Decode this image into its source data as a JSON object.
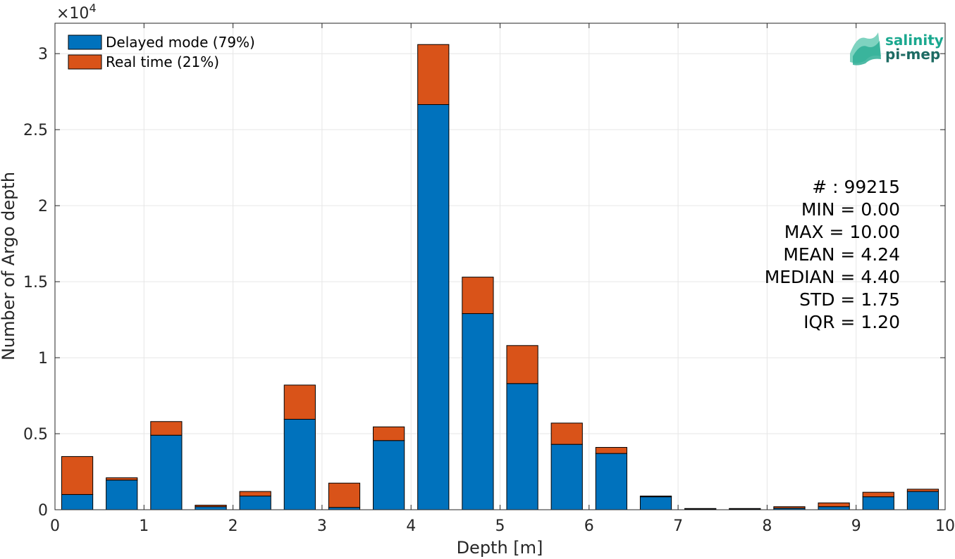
{
  "chart_data": {
    "type": "bar",
    "stacked": true,
    "xlabel": "Depth [m]",
    "ylabel": "Number of Argo depth",
    "y_exponent_label": "×10",
    "y_exponent_power": "4",
    "xlim": [
      0,
      10
    ],
    "ylim": [
      0,
      32000
    ],
    "xticks": [
      0,
      1,
      2,
      3,
      4,
      5,
      6,
      7,
      8,
      9,
      10
    ],
    "xtick_labels": [
      "0",
      "1",
      "2",
      "3",
      "4",
      "5",
      "6",
      "7",
      "8",
      "9",
      "10"
    ],
    "yticks": [
      0,
      5000,
      10000,
      15000,
      20000,
      25000,
      30000
    ],
    "ytick_labels": [
      "0",
      "0.5",
      "1",
      "1.5",
      "2",
      "2.5",
      "3"
    ],
    "grid": true,
    "legend_position": "top-left",
    "bin_width": 0.5,
    "x": [
      0.25,
      0.75,
      1.25,
      1.75,
      2.25,
      2.75,
      3.25,
      3.75,
      4.25,
      4.75,
      5.25,
      5.75,
      6.25,
      6.75,
      7.25,
      7.75,
      8.25,
      8.75,
      9.25,
      9.75
    ],
    "series": [
      {
        "name": "Delayed mode (79%)",
        "color": "#0072BD",
        "values": [
          1000,
          1950,
          4900,
          200,
          900,
          5950,
          150,
          4550,
          26650,
          12900,
          8300,
          4300,
          3700,
          850,
          50,
          50,
          100,
          200,
          850,
          1200
        ]
      },
      {
        "name": "Real time (21%)",
        "color": "#D95319",
        "values": [
          2500,
          150,
          900,
          100,
          300,
          2250,
          1600,
          900,
          3950,
          2400,
          2500,
          1400,
          400,
          50,
          30,
          30,
          100,
          250,
          300,
          150
        ]
      }
    ]
  },
  "stats": [
    "# : 99215",
    "MIN = 0.00",
    "MAX =  10.00",
    "MEAN = 4.24",
    "MEDIAN = 4.40",
    "STD = 1.75",
    "IQR = 1.20"
  ],
  "logo": {
    "line1": "salinity",
    "line2": "pi-mep",
    "color1": "#1aa88f",
    "color2": "#1d6b63"
  }
}
